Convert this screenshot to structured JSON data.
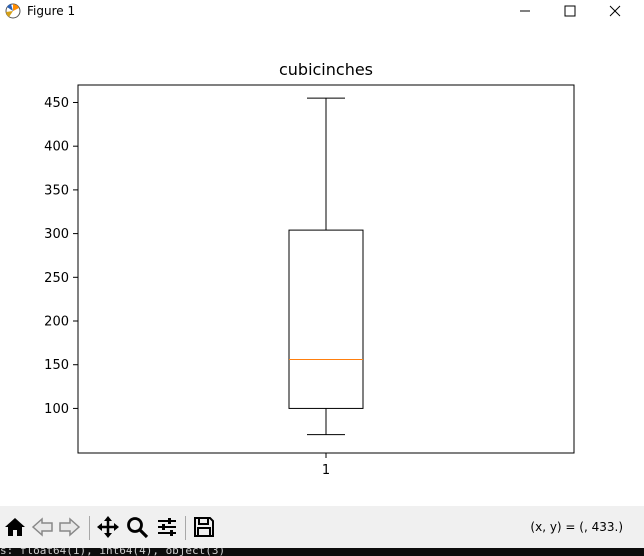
{
  "window": {
    "title": "Figure 1",
    "minimize_icon": "minimize-icon",
    "maximize_icon": "maximize-icon",
    "close_icon": "close-icon"
  },
  "chart_data": {
    "type": "box",
    "title": "cubicinches",
    "categories": [
      "1"
    ],
    "boxes": [
      {
        "name": "1",
        "whisker_low": 70,
        "q1": 100,
        "median": 156,
        "q3": 304,
        "whisker_high": 455
      }
    ],
    "yticks": [
      100,
      150,
      200,
      250,
      300,
      350,
      400,
      450
    ],
    "ylim": [
      49,
      470
    ],
    "colors": {
      "box": "#000000",
      "median": "#ff7f0e"
    }
  },
  "toolbar": {
    "home_icon": "home-icon",
    "back_icon": "back-arrow-icon",
    "forward_icon": "forward-arrow-icon",
    "pan_icon": "pan-icon",
    "zoom_icon": "zoom-icon",
    "configure_icon": "configure-subplots-icon",
    "save_icon": "save-icon",
    "coords": "(x, y) = (, 433.)"
  },
  "console": {
    "text": "s: float64(1), int64(4), object(3)"
  }
}
